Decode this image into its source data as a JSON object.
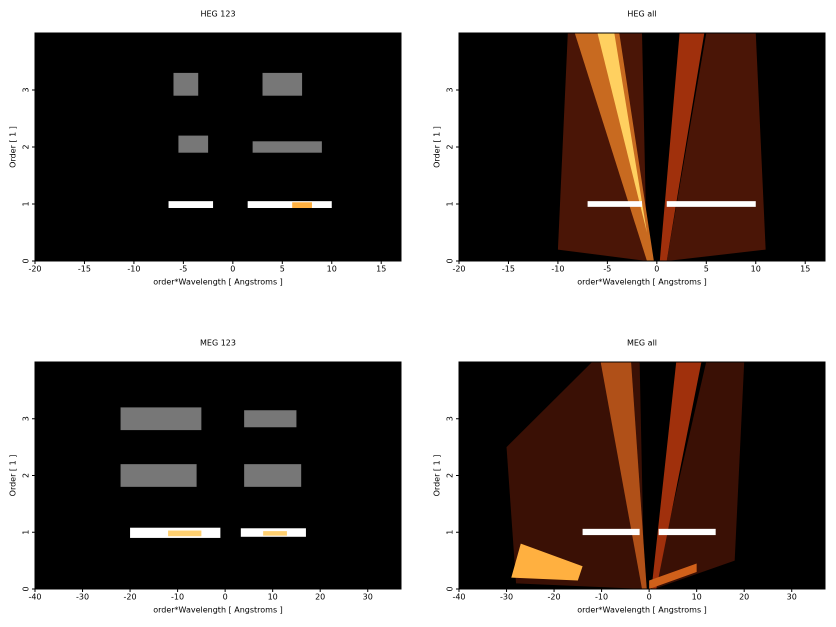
{
  "chart_data": [
    {
      "type": "density",
      "title": "HEG 123",
      "xlabel": "order*Wavelength [ Angstroms ]",
      "ylabel": "Order [ 1 ]",
      "xlim": [
        -20,
        17
      ],
      "ylim": [
        0,
        4
      ],
      "xticks": [
        -20,
        -15,
        -10,
        -5,
        0,
        5,
        10,
        15
      ],
      "yticks": [
        0,
        1,
        2,
        3
      ],
      "background": "#000000",
      "wedges": [],
      "regions": [
        {
          "x": [
            -6.5,
            -2
          ],
          "y": [
            0.93,
            1.05
          ],
          "color": "#ffffff"
        },
        {
          "x": [
            1.5,
            10
          ],
          "y": [
            0.93,
            1.05
          ],
          "color": "#ffffff"
        },
        {
          "x": [
            6,
            8
          ],
          "y": [
            0.93,
            1.03
          ],
          "color": "#ffb040"
        },
        {
          "x": [
            -5.5,
            -2.5
          ],
          "y": [
            1.9,
            2.2
          ],
          "color": "#777777"
        },
        {
          "x": [
            2,
            9
          ],
          "y": [
            1.9,
            2.1
          ],
          "color": "#777777"
        },
        {
          "x": [
            -6,
            -3.5
          ],
          "y": [
            2.9,
            3.3
          ],
          "color": "#777777"
        },
        {
          "x": [
            3,
            7
          ],
          "y": [
            2.9,
            3.3
          ],
          "color": "#777777"
        }
      ]
    },
    {
      "type": "density",
      "title": "HEG all",
      "xlabel": "order*Wavelength [ Angstroms ]",
      "ylabel": "Order [ 1 ]",
      "xlim": [
        -20,
        17
      ],
      "ylim": [
        0,
        4
      ],
      "xticks": [
        -20,
        -15,
        -10,
        -5,
        0,
        5,
        10,
        15
      ],
      "yticks": [
        0,
        1,
        2,
        3
      ],
      "background": "#000000",
      "wedges": [
        {
          "x": [
            -1,
            -10,
            -9,
            -1.5
          ],
          "y": [
            0,
            0.2,
            4,
            4
          ],
          "color": "#4a1506"
        },
        {
          "x": [
            1,
            11,
            10,
            5
          ],
          "y": [
            0,
            0.2,
            4,
            4
          ],
          "color": "#4a1506"
        },
        {
          "x": [
            -0.3,
            -1,
            -8.3,
            -3.8
          ],
          "y": [
            0,
            0,
            4,
            4
          ],
          "color": "#c86a20"
        },
        {
          "x": [
            0.3,
            1,
            4.8,
            2.3
          ],
          "y": [
            0,
            0,
            4,
            4
          ],
          "color": "#a0300c"
        },
        {
          "x": [
            -1,
            -6,
            -4.3
          ],
          "y": [
            0.5,
            4,
            4
          ],
          "color": "#ffd060"
        }
      ],
      "regions": [
        {
          "x": [
            -7,
            -1.5
          ],
          "y": [
            0.95,
            1.05
          ],
          "color": "#ffffff"
        },
        {
          "x": [
            1,
            10
          ],
          "y": [
            0.95,
            1.05
          ],
          "color": "#ffffff"
        }
      ]
    },
    {
      "type": "density",
      "title": "MEG 123",
      "xlabel": "order*Wavelength [ Angstroms ]",
      "ylabel": "Order [ 1 ]",
      "xlim": [
        -40,
        37
      ],
      "ylim": [
        0,
        4
      ],
      "xticks": [
        -40,
        -30,
        -20,
        -10,
        0,
        10,
        20,
        30
      ],
      "yticks": [
        0,
        1,
        2,
        3
      ],
      "background": "#000000",
      "wedges": [],
      "regions": [
        {
          "x": [
            -20,
            -1
          ],
          "y": [
            0.9,
            1.08
          ],
          "color": "#ffffff"
        },
        {
          "x": [
            -12,
            -5
          ],
          "y": [
            0.93,
            1.03
          ],
          "color": "#ffd070"
        },
        {
          "x": [
            3.3,
            17
          ],
          "y": [
            0.92,
            1.07
          ],
          "color": "#ffffff"
        },
        {
          "x": [
            8,
            13
          ],
          "y": [
            0.94,
            1.02
          ],
          "color": "#ffd070"
        },
        {
          "x": [
            -22,
            -6
          ],
          "y": [
            1.8,
            2.2
          ],
          "color": "#777777"
        },
        {
          "x": [
            4,
            16
          ],
          "y": [
            1.8,
            2.2
          ],
          "color": "#777777"
        },
        {
          "x": [
            -22,
            -5
          ],
          "y": [
            2.8,
            3.2
          ],
          "color": "#777777"
        },
        {
          "x": [
            4,
            15
          ],
          "y": [
            2.85,
            3.15
          ],
          "color": "#777777"
        }
      ]
    },
    {
      "type": "density",
      "title": "MEG all",
      "xlabel": "order*Wavelength [ Angstroms ]",
      "ylabel": "Order [ 1 ]",
      "xlim": [
        -40,
        37
      ],
      "ylim": [
        0,
        4
      ],
      "xticks": [
        -40,
        -30,
        -20,
        -10,
        0,
        10,
        20,
        30
      ],
      "yticks": [
        0,
        1,
        2,
        3
      ],
      "background": "#000000",
      "wedges": [
        {
          "x": [
            -1,
            -28,
            -30,
            -12,
            -2
          ],
          "y": [
            0,
            0.1,
            2.5,
            4,
            4
          ],
          "color": "#3a1005"
        },
        {
          "x": [
            1,
            18,
            20,
            12
          ],
          "y": [
            0,
            0.5,
            4,
            4
          ],
          "color": "#3a1005"
        },
        {
          "x": [
            -0.5,
            -1.5,
            -10.2,
            -3.8
          ],
          "y": [
            0,
            0,
            4,
            4
          ],
          "color": "#b05018"
        },
        {
          "x": [
            0.5,
            1.5,
            11,
            5.7
          ],
          "y": [
            0,
            0,
            4,
            4
          ],
          "color": "#a0300c"
        },
        {
          "x": [
            -29,
            -15,
            -14,
            -27
          ],
          "y": [
            0.2,
            0.15,
            0.4,
            0.8
          ],
          "color": "#ffb040"
        },
        {
          "x": [
            0,
            10,
            10,
            0
          ],
          "y": [
            0,
            0.3,
            0.45,
            0.15
          ],
          "color": "#d0601a"
        }
      ],
      "regions": [
        {
          "x": [
            -14,
            -2
          ],
          "y": [
            0.95,
            1.06
          ],
          "color": "#ffffff"
        },
        {
          "x": [
            2,
            14
          ],
          "y": [
            0.95,
            1.06
          ],
          "color": "#ffffff"
        }
      ]
    }
  ]
}
